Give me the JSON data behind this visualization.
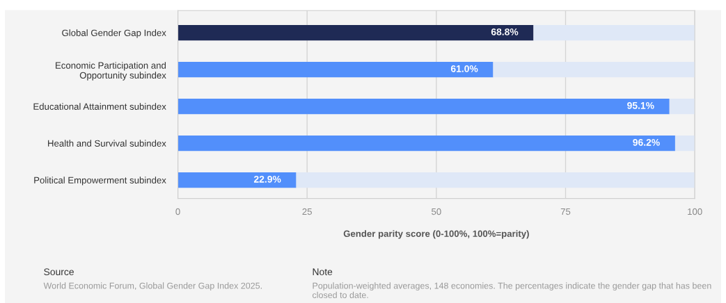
{
  "chart_data": {
    "type": "bar",
    "orientation": "horizontal",
    "stacked": true,
    "categories": [
      "Global Gender Gap Index",
      "Economic Participation and\nOpportunity subindex",
      "Educational Attainment subindex",
      "Health and Survival subindex",
      "Political Empowerment subindex"
    ],
    "series": [
      {
        "colors": [
          "#1f2a55",
          "#528ffb",
          "#528ffb",
          "#528ffb",
          "#528ffb"
        ],
        "values": [
          68.8,
          61.0,
          95.1,
          96.2,
          22.9
        ],
        "value_labels": [
          "68.8%",
          "61.0%",
          "95.1%",
          "96.2%",
          "22.9%"
        ]
      },
      {
        "color": "#dfe8f7",
        "values": [
          31.2,
          39.0,
          4.9,
          3.8,
          77.1
        ]
      }
    ],
    "xlabel": "Gender parity score (0-100%, 100%=parity)",
    "xlim": [
      0,
      100
    ],
    "xticks": [
      0,
      25,
      50,
      75,
      100
    ],
    "grid": "x",
    "annotations": [
      "Source",
      "World Economic Forum, Global Gender Gap Index 2025.",
      "Note",
      "Population-weighted averages, 148 economies. The percentages indicate the gender gap that has been closed to date."
    ]
  }
}
